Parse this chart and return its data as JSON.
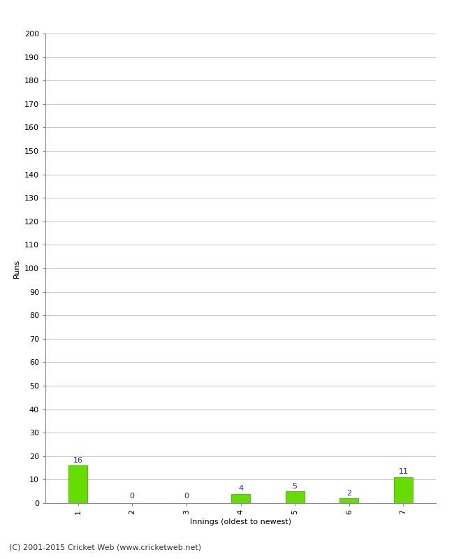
{
  "categories": [
    "1",
    "2",
    "3",
    "4",
    "5",
    "6",
    "7"
  ],
  "values": [
    16,
    0,
    0,
    4,
    5,
    2,
    11
  ],
  "bar_color": "#66dd00",
  "bar_edge_color": "#55bb00",
  "label_color": "#2222cc",
  "ylabel": "Runs",
  "xlabel": "Innings (oldest to newest)",
  "ylim": [
    0,
    200
  ],
  "ytick_interval": 10,
  "footer": "(C) 2001-2015 Cricket Web (www.cricketweb.net)",
  "background_color": "#ffffff",
  "grid_color": "#cccccc",
  "label_fontsize": 8,
  "axis_tick_fontsize": 8,
  "axis_label_fontsize": 8,
  "footer_fontsize": 8
}
